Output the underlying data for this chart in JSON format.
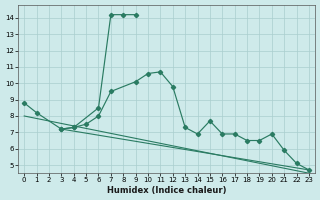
{
  "xlabel": "Humidex (Indice chaleur)",
  "curve1_x": [
    0,
    1,
    3,
    4,
    6,
    7,
    8,
    9
  ],
  "curve1_y": [
    8.8,
    8.2,
    7.2,
    7.3,
    8.5,
    14.2,
    14.2,
    14.2
  ],
  "curve2_x": [
    3,
    4,
    5,
    6,
    7,
    9,
    10,
    11,
    12,
    13,
    14,
    15,
    16,
    17,
    18,
    19,
    20,
    21,
    22,
    23
  ],
  "curve2_y": [
    7.2,
    7.3,
    7.5,
    8.0,
    9.5,
    10.1,
    10.6,
    10.7,
    9.8,
    7.3,
    6.9,
    7.7,
    6.9,
    6.9,
    6.5,
    6.5,
    6.9,
    5.9,
    5.1,
    4.7
  ],
  "trend1_x": [
    0,
    23
  ],
  "trend1_y": [
    8.0,
    4.5
  ],
  "trend2_x": [
    3,
    23
  ],
  "trend2_y": [
    7.2,
    4.7
  ],
  "ylim": [
    4.5,
    14.8
  ],
  "xlim": [
    -0.5,
    23.5
  ],
  "yticks": [
    5,
    6,
    7,
    8,
    9,
    10,
    11,
    12,
    13,
    14
  ],
  "xticks": [
    0,
    1,
    2,
    3,
    4,
    5,
    6,
    7,
    8,
    9,
    10,
    11,
    12,
    13,
    14,
    15,
    16,
    17,
    18,
    19,
    20,
    21,
    22,
    23
  ],
  "line_color": "#2a7b62",
  "bg_color": "#ceeaea",
  "grid_color": "#aacece"
}
